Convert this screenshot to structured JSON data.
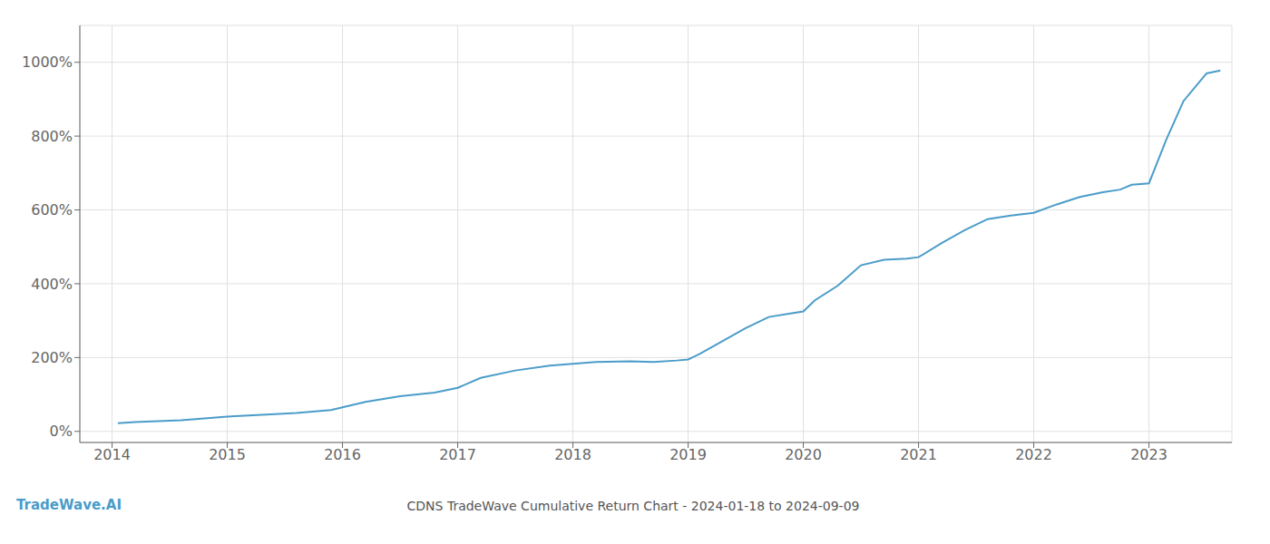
{
  "chart_data": {
    "type": "line",
    "title": "CDNS TradeWave Cumulative Return Chart - 2024-01-18 to 2024-09-09",
    "annotations": [
      {
        "text": "TradeWave.AI",
        "color": "#4a9cc9"
      }
    ],
    "x": [
      2014.05,
      2014.2,
      2014.4,
      2014.6,
      2014.8,
      2015.0,
      2015.3,
      2015.6,
      2015.9,
      2016.0,
      2016.2,
      2016.5,
      2016.8,
      2017.0,
      2017.2,
      2017.5,
      2017.8,
      2018.0,
      2018.2,
      2018.5,
      2018.7,
      2018.9,
      2019.0,
      2019.1,
      2019.3,
      2019.5,
      2019.7,
      2019.9,
      2020.0,
      2020.1,
      2020.3,
      2020.5,
      2020.7,
      2020.9,
      2021.0,
      2021.2,
      2021.4,
      2021.6,
      2021.8,
      2022.0,
      2022.2,
      2022.4,
      2022.6,
      2022.75,
      2022.85,
      2023.0,
      2023.15,
      2023.3,
      2023.5,
      2023.62
    ],
    "values": [
      22,
      25,
      28,
      30,
      35,
      40,
      45,
      50,
      58,
      65,
      80,
      95,
      105,
      118,
      145,
      165,
      178,
      183,
      188,
      190,
      188,
      192,
      195,
      210,
      245,
      280,
      310,
      320,
      325,
      355,
      395,
      450,
      465,
      468,
      472,
      510,
      545,
      575,
      585,
      592,
      615,
      635,
      648,
      655,
      668,
      672,
      790,
      895,
      970,
      978
    ],
    "color": "#4a9cc9",
    "xlim": [
      2013.72,
      2023.72
    ],
    "ylim": [
      -30,
      1100
    ],
    "xticks": [
      2014,
      2015,
      2016,
      2017,
      2018,
      2019,
      2020,
      2021,
      2022,
      2023
    ],
    "yticks": [
      {
        "value": 0,
        "label": "0%"
      },
      {
        "value": 200,
        "label": "200%"
      },
      {
        "value": 400,
        "label": "400%"
      },
      {
        "value": 600,
        "label": "600%"
      },
      {
        "value": 800,
        "label": "800%"
      },
      {
        "value": 1000,
        "label": "1000%"
      }
    ],
    "grid": true
  }
}
